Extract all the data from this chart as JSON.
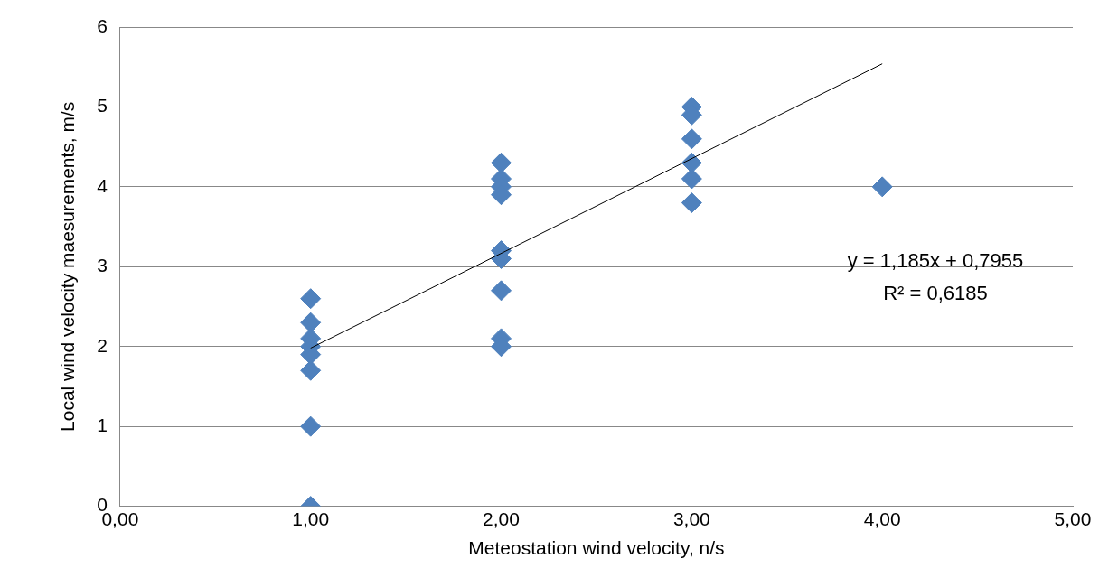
{
  "chart_data": {
    "type": "scatter",
    "xlabel": "Meteostation wind velocity, n/s",
    "ylabel": "Local wind velocity maesurements, m/s",
    "xlim": [
      0,
      5
    ],
    "xticks": [
      {
        "value": 0,
        "label": "0,00"
      },
      {
        "value": 1,
        "label": "1,00"
      },
      {
        "value": 2,
        "label": "2,00"
      },
      {
        "value": 3,
        "label": "3,00"
      },
      {
        "value": 4,
        "label": "4,00"
      },
      {
        "value": 5,
        "label": "5,00"
      }
    ],
    "ylim": [
      0,
      6
    ],
    "yticks": [
      0,
      1,
      2,
      3,
      4,
      5,
      6
    ],
    "grid": "y",
    "legend": false,
    "marker": "diamond",
    "series": [
      {
        "color": "#4f81bd",
        "x": [
          1,
          1,
          1,
          1,
          1,
          1,
          1,
          1,
          2,
          2,
          2,
          2,
          2,
          2,
          2,
          2,
          2,
          3,
          3,
          3,
          3,
          3,
          3,
          4
        ],
        "values": [
          2.6,
          2.3,
          2.1,
          2.0,
          1.9,
          1.7,
          1.0,
          0,
          4.3,
          4.1,
          4.0,
          3.9,
          3.2,
          3.1,
          2.7,
          2.1,
          2.0,
          5.0,
          4.9,
          4.6,
          4.3,
          4.1,
          3.8,
          4.0
        ]
      },
      {
        "type": "line",
        "color": "#000000",
        "marker": "none",
        "x": [
          1,
          4
        ],
        "values": [
          1.98,
          5.54
        ]
      }
    ],
    "annotations": [
      "y = 1,185x + 0,7955",
      "R² = 0,6185"
    ]
  }
}
